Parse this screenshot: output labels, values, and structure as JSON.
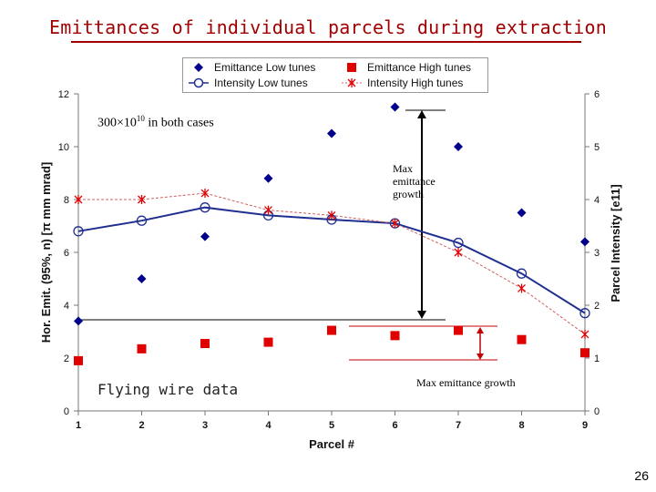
{
  "slide": {
    "title": "Emittances of individual parcels during extraction",
    "page_number": "26"
  },
  "annotations": {
    "intensity_base": "300×10",
    "intensity_exp": "10",
    "intensity_tail": " in both cases",
    "max_growth_block": "Max emittance growth",
    "flying_wire": "Flying wire data",
    "max_growth_red": "Max emittance growth"
  },
  "colors": {
    "navy": "#00008b",
    "red": "#e00000",
    "blue_line": "#1f2f8f",
    "pink_line": "#d06060",
    "title": "#a00000"
  },
  "chart_data": {
    "type": "scatter",
    "xlabel": "Parcel #",
    "ylabel": "Hor. Emit. (95%, n) [π mm mrad]",
    "y2label": "Parcel Intensity [e11]",
    "x": [
      1,
      2,
      3,
      4,
      5,
      6,
      7,
      8,
      9
    ],
    "xlim": [
      1,
      9
    ],
    "ylim": [
      0,
      12
    ],
    "y2lim": [
      0,
      6
    ],
    "xticks": [
      "1",
      "2",
      "3",
      "4",
      "5",
      "6",
      "7",
      "8",
      "9"
    ],
    "yticks": [
      "0",
      "2",
      "4",
      "6",
      "8",
      "10",
      "12"
    ],
    "y2ticks": [
      "0",
      "1",
      "2",
      "3",
      "4",
      "5",
      "6"
    ],
    "series": [
      {
        "name": "Emittance Low tunes",
        "axis": "left",
        "marker": "diamond",
        "line": false,
        "values": [
          3.4,
          5.0,
          6.6,
          8.8,
          10.5,
          11.5,
          10.0,
          7.5,
          6.4
        ]
      },
      {
        "name": "Emittance High tunes",
        "axis": "left",
        "marker": "square",
        "line": false,
        "values": [
          1.9,
          2.35,
          2.55,
          2.6,
          3.05,
          2.85,
          3.05,
          2.7,
          2.2
        ]
      },
      {
        "name": "Intensity Low tunes",
        "axis": "right",
        "marker": "circle",
        "line": true,
        "values": [
          3.4,
          3.6,
          3.85,
          3.7,
          3.62,
          3.55,
          3.18,
          2.6,
          1.85
        ]
      },
      {
        "name": "Intensity High tunes",
        "axis": "right",
        "marker": "star",
        "line": true,
        "values": [
          4.0,
          4.0,
          4.12,
          3.8,
          3.7,
          3.55,
          3.0,
          2.32,
          1.45
        ]
      }
    ]
  }
}
